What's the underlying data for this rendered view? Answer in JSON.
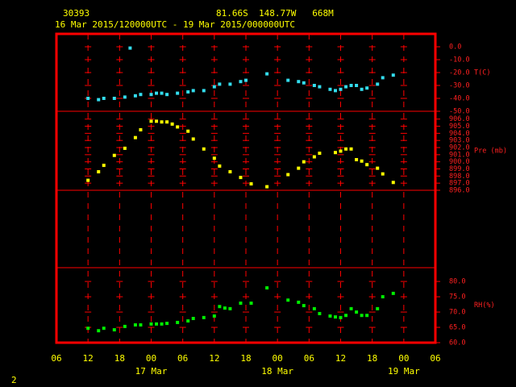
{
  "header": {
    "station": "30393",
    "location": "81.66S  148.77W   668M",
    "period": "16 Mar 2015/120000UTC - 19 Mar 2015/000000UTC"
  },
  "footer_label": "2",
  "chart_data": [
    {
      "type": "scatter",
      "ylabel": "T(C)",
      "color": "#33ddee",
      "x": [
        "2015-03-16T12:00Z",
        "2015-03-16T14:00Z",
        "2015-03-16T15:00Z",
        "2015-03-16T17:00Z",
        "2015-03-16T19:00Z",
        "2015-03-16T20:00Z",
        "2015-03-16T21:00Z",
        "2015-03-16T22:00Z",
        "2015-03-17T00:00Z",
        "2015-03-17T01:00Z",
        "2015-03-17T02:00Z",
        "2015-03-17T03:00Z",
        "2015-03-17T05:00Z",
        "2015-03-17T07:00Z",
        "2015-03-17T08:00Z",
        "2015-03-17T10:00Z",
        "2015-03-17T12:00Z",
        "2015-03-17T13:00Z",
        "2015-03-17T15:00Z",
        "2015-03-17T17:00Z",
        "2015-03-17T18:00Z",
        "2015-03-17T22:00Z",
        "2015-03-18T02:00Z",
        "2015-03-18T04:00Z",
        "2015-03-18T05:00Z",
        "2015-03-18T07:00Z",
        "2015-03-18T08:00Z",
        "2015-03-18T10:00Z",
        "2015-03-18T11:00Z",
        "2015-03-18T12:00Z",
        "2015-03-18T13:00Z",
        "2015-03-18T14:00Z",
        "2015-03-18T15:00Z",
        "2015-03-18T16:00Z",
        "2015-03-18T17:00Z",
        "2015-03-18T19:00Z",
        "2015-03-18T20:00Z",
        "2015-03-18T22:00Z"
      ],
      "values": [
        -40,
        -41,
        -40,
        -40,
        -39,
        -1,
        -38,
        -37,
        -37,
        -36,
        -36,
        -37,
        -36,
        -35,
        -34,
        -34,
        -31,
        -29,
        -29,
        -27,
        -26,
        -21,
        -26,
        -27,
        -28,
        -30,
        -31,
        -33,
        -34,
        -33,
        -31,
        -30,
        -30,
        -33,
        -32,
        -29,
        -24,
        -22
      ],
      "ylim": [
        -50,
        10
      ],
      "yticks": [
        {
          "value": 0,
          "label": "0.0"
        },
        {
          "value": -10,
          "label": "-10.0"
        },
        {
          "value": -20,
          "label": "-20.0"
        },
        {
          "value": -30,
          "label": "-30.0"
        },
        {
          "value": -40,
          "label": "-40.0"
        },
        {
          "value": -50,
          "label": "-50.0"
        }
      ]
    },
    {
      "type": "scatter",
      "ylabel": "Pre (mb)",
      "color": "#ffff00",
      "x": [
        "2015-03-16T12:00Z",
        "2015-03-16T14:00Z",
        "2015-03-16T15:00Z",
        "2015-03-16T17:00Z",
        "2015-03-16T19:00Z",
        "2015-03-16T21:00Z",
        "2015-03-16T22:00Z",
        "2015-03-17T00:00Z",
        "2015-03-17T01:00Z",
        "2015-03-17T02:00Z",
        "2015-03-17T03:00Z",
        "2015-03-17T04:00Z",
        "2015-03-17T05:00Z",
        "2015-03-17T07:00Z",
        "2015-03-17T08:00Z",
        "2015-03-17T10:00Z",
        "2015-03-17T12:00Z",
        "2015-03-17T13:00Z",
        "2015-03-17T15:00Z",
        "2015-03-17T17:00Z",
        "2015-03-17T19:00Z",
        "2015-03-17T22:00Z",
        "2015-03-18T02:00Z",
        "2015-03-18T04:00Z",
        "2015-03-18T05:00Z",
        "2015-03-18T07:00Z",
        "2015-03-18T08:00Z",
        "2015-03-18T11:00Z",
        "2015-03-18T12:00Z",
        "2015-03-18T13:00Z",
        "2015-03-18T14:00Z",
        "2015-03-18T15:00Z",
        "2015-03-18T16:00Z",
        "2015-03-18T17:00Z",
        "2015-03-18T19:00Z",
        "2015-03-18T20:00Z",
        "2015-03-18T22:00Z"
      ],
      "values": [
        897.4,
        898.6,
        899.5,
        900.9,
        901.9,
        903.4,
        904.5,
        905.7,
        905.7,
        905.6,
        905.6,
        905.3,
        904.9,
        904.3,
        903.2,
        901.8,
        900.5,
        899.4,
        898.6,
        897.8,
        896.9,
        896.5,
        898.2,
        899.1,
        900.0,
        900.7,
        901.2,
        901.3,
        901.5,
        901.8,
        901.8,
        900.3,
        900.1,
        899.6,
        899.1,
        898.3,
        897.1
      ],
      "ylim": [
        896,
        907.1
      ],
      "yticks": [
        {
          "value": 906,
          "label": "906.0"
        },
        {
          "value": 905,
          "label": "905.0"
        },
        {
          "value": 904,
          "label": "904.0"
        },
        {
          "value": 903,
          "label": "903.0"
        },
        {
          "value": 902,
          "label": "902.0"
        },
        {
          "value": 901,
          "label": "901.0"
        },
        {
          "value": 900,
          "label": "900.0"
        },
        {
          "value": 899,
          "label": "899.0"
        },
        {
          "value": 898,
          "label": "898.0"
        },
        {
          "value": 897,
          "label": "897.0"
        },
        {
          "value": 896,
          "label": "896.0"
        }
      ]
    },
    {
      "type": "scatter",
      "ylabel": "RH(%)",
      "color": "#00ee00",
      "x": [
        "2015-03-16T12:00Z",
        "2015-03-16T14:00Z",
        "2015-03-16T15:00Z",
        "2015-03-16T17:00Z",
        "2015-03-16T19:00Z",
        "2015-03-16T21:00Z",
        "2015-03-16T22:00Z",
        "2015-03-17T00:00Z",
        "2015-03-17T01:00Z",
        "2015-03-17T02:00Z",
        "2015-03-17T03:00Z",
        "2015-03-17T05:00Z",
        "2015-03-17T07:00Z",
        "2015-03-17T08:00Z",
        "2015-03-17T10:00Z",
        "2015-03-17T12:00Z",
        "2015-03-17T13:00Z",
        "2015-03-17T14:00Z",
        "2015-03-17T15:00Z",
        "2015-03-17T17:00Z",
        "2015-03-17T19:00Z",
        "2015-03-17T22:00Z",
        "2015-03-18T02:00Z",
        "2015-03-18T04:00Z",
        "2015-03-18T05:00Z",
        "2015-03-18T07:00Z",
        "2015-03-18T08:00Z",
        "2015-03-18T10:00Z",
        "2015-03-18T11:00Z",
        "2015-03-18T12:00Z",
        "2015-03-18T13:00Z",
        "2015-03-18T14:00Z",
        "2015-03-18T15:00Z",
        "2015-03-18T16:00Z",
        "2015-03-18T17:00Z",
        "2015-03-18T19:00Z",
        "2015-03-18T20:00Z",
        "2015-03-18T22:00Z"
      ],
      "values": [
        64.7,
        63.9,
        64.7,
        64.2,
        65.3,
        65.8,
        65.8,
        66.1,
        66.1,
        66.1,
        66.3,
        66.6,
        67.1,
        67.9,
        68.2,
        68.7,
        71.8,
        71.3,
        71.1,
        72.9,
        72.9,
        77.9,
        73.9,
        73.2,
        72.1,
        71.1,
        69.5,
        68.7,
        68.4,
        68.2,
        68.9,
        71.1,
        70.0,
        68.9,
        68.9,
        71.1,
        75.0,
        76.1
      ],
      "ylim": [
        60,
        84.5
      ],
      "yticks": [
        {
          "value": 80,
          "label": "80.0"
        },
        {
          "value": 75,
          "label": "75.0"
        },
        {
          "value": 70,
          "label": "70.0"
        },
        {
          "value": 65,
          "label": "65.0"
        },
        {
          "value": 60,
          "label": "60.0"
        }
      ],
      "xlim": [
        "2015-03-16T06:00Z",
        "2015-03-19T06:00Z"
      ],
      "xticks": [
        {
          "value": "2015-03-16T06:00Z",
          "label": "06"
        },
        {
          "value": "2015-03-16T12:00Z",
          "label": "12"
        },
        {
          "value": "2015-03-16T18:00Z",
          "label": "18"
        },
        {
          "value": "2015-03-17T00:00Z",
          "label": "00"
        },
        {
          "value": "2015-03-17T06:00Z",
          "label": "06"
        },
        {
          "value": "2015-03-17T12:00Z",
          "label": "12"
        },
        {
          "value": "2015-03-17T18:00Z",
          "label": "18"
        },
        {
          "value": "2015-03-18T00:00Z",
          "label": "00"
        },
        {
          "value": "2015-03-18T06:00Z",
          "label": "06"
        },
        {
          "value": "2015-03-18T12:00Z",
          "label": "12"
        },
        {
          "value": "2015-03-18T18:00Z",
          "label": "18"
        },
        {
          "value": "2015-03-19T00:00Z",
          "label": "00"
        },
        {
          "value": "2015-03-19T06:00Z",
          "label": "06"
        }
      ],
      "xdate_labels": [
        {
          "value": "2015-03-17T00:00Z",
          "label": "17 Mar"
        },
        {
          "value": "2015-03-18T00:00Z",
          "label": "18 Mar"
        },
        {
          "value": "2015-03-19T00:00Z",
          "label": "19 Mar"
        }
      ]
    }
  ]
}
